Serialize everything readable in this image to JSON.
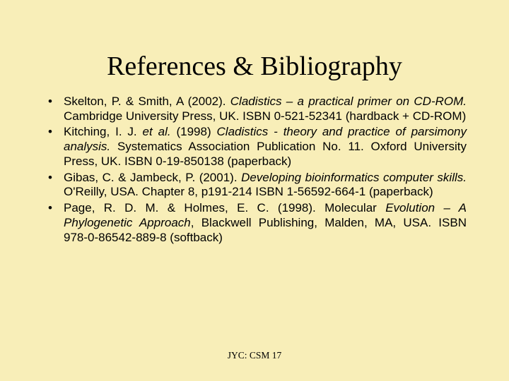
{
  "title": "References & Bibliography",
  "references": [
    {
      "html": "Skelton, P. & Smith, A (2002). <i>Cladistics – a practical primer on CD-ROM.</i> Cambridge University Press, UK. ISBN 0-521-52341 (hardback + CD-ROM)"
    },
    {
      "html": "Kitching, I. J. <i>et al.</i> (1998) <i>Cladistics - theory and practice of parsimony analysis.</i> Systematics Association Publication No. 11. Oxford University Press, UK. ISBN 0-19-850138 (paperback)"
    },
    {
      "html": "Gibas, C. & Jambeck, P. (2001). <i>Developing bioinformatics computer skills.</i> O'Reilly, USA. Chapter 8, p191-214 ISBN 1-56592-664-1 (paperback)"
    },
    {
      "html": "Page, R. D. M. & Holmes, E. C. (1998). Molecular <i>Evolution – A Phylogenetic Approach</i>, Blackwell Publishing, Malden, MA, USA. ISBN 978-0-86542-889-8 (softback)"
    }
  ],
  "footer": "JYC: CSM 17",
  "colors": {
    "background": "#f8eeb8",
    "text": "#000000"
  },
  "typography": {
    "title_fontsize": 38,
    "title_family": "Times New Roman",
    "body_fontsize": 17,
    "body_family": "Arial",
    "footer_fontsize": 13.5,
    "footer_family": "Times New Roman"
  }
}
